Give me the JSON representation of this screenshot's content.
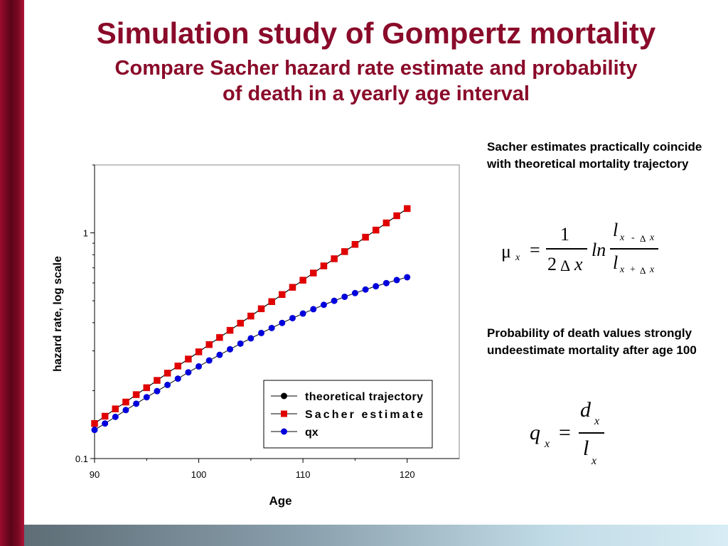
{
  "slide": {
    "title": "Simulation study of Gompertz mortality",
    "subtitle_line1": "Compare Sacher hazard rate estimate and probability",
    "subtitle_line2": "of death in a yearly age interval",
    "note1": "Sacher estimates practically coincide with theoretical mortality trajectory",
    "note2": "Probability of death values strongly undeestimate mortality after age 100"
  },
  "colors": {
    "title": "#8a0a2a",
    "theoretical": "#000000",
    "sacher": "#e00000",
    "qx": "#0000dd"
  },
  "formula1": {
    "mu": "μ",
    "x": "x",
    "equals": "=",
    "one": "1",
    "two": "2",
    "delta": "Δ",
    "ln": "ln",
    "l": "l",
    "minus": "-",
    "plus": "+"
  },
  "formula2": {
    "q": "q",
    "x": "x",
    "equals": "=",
    "d": "d",
    "l": "l"
  },
  "chart_data": {
    "type": "line",
    "title": "",
    "xlabel": "Age",
    "ylabel": "hazard rate, log scale",
    "yscale": "log",
    "xlim": [
      90,
      125
    ],
    "ylim": [
      0.1,
      2
    ],
    "x_ticks": [
      90,
      100,
      110,
      120
    ],
    "x_tick_labels": [
      "90",
      "100",
      "110",
      "120"
    ],
    "y_ticks": [
      0.1,
      1
    ],
    "y_tick_labels": [
      "0.1",
      "1"
    ],
    "grid": false,
    "legend_position": "bottom-right",
    "x": [
      90,
      91,
      92,
      93,
      94,
      95,
      96,
      97,
      98,
      99,
      100,
      101,
      102,
      103,
      104,
      105,
      106,
      107,
      108,
      109,
      110,
      111,
      112,
      113,
      114,
      115,
      116,
      117,
      118,
      119,
      120
    ],
    "series": [
      {
        "name": "theoretical trajectory",
        "marker": "circle",
        "values": [
          0.143,
          0.154,
          0.166,
          0.178,
          0.192,
          0.206,
          0.222,
          0.239,
          0.257,
          0.276,
          0.297,
          0.32,
          0.344,
          0.37,
          0.398,
          0.428,
          0.461,
          0.496,
          0.533,
          0.574,
          0.617,
          0.664,
          0.714,
          0.768,
          0.826,
          0.889,
          0.957,
          1.029,
          1.107,
          1.191,
          1.281
        ]
      },
      {
        "name": "Sacher estimate",
        "marker": "square",
        "values": [
          0.143,
          0.154,
          0.166,
          0.178,
          0.192,
          0.206,
          0.222,
          0.239,
          0.257,
          0.276,
          0.297,
          0.32,
          0.344,
          0.37,
          0.398,
          0.428,
          0.461,
          0.496,
          0.533,
          0.574,
          0.617,
          0.664,
          0.714,
          0.768,
          0.826,
          0.889,
          0.957,
          1.029,
          1.107,
          1.191,
          1.281
        ]
      },
      {
        "name": "qx",
        "marker": "circle",
        "values": [
          0.134,
          0.143,
          0.153,
          0.164,
          0.175,
          0.187,
          0.199,
          0.212,
          0.226,
          0.241,
          0.256,
          0.272,
          0.288,
          0.305,
          0.323,
          0.341,
          0.36,
          0.379,
          0.399,
          0.419,
          0.439,
          0.459,
          0.48,
          0.5,
          0.521,
          0.541,
          0.561,
          0.58,
          0.599,
          0.618,
          0.636
        ]
      }
    ]
  }
}
